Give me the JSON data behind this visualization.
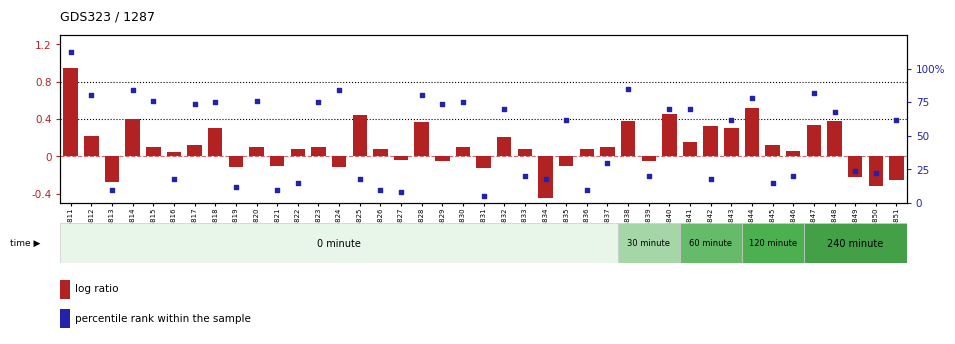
{
  "title": "GDS323 / 1287",
  "samples": [
    "GSM5811",
    "GSM5812",
    "GSM5813",
    "GSM5814",
    "GSM5815",
    "GSM5816",
    "GSM5817",
    "GSM5818",
    "GSM5819",
    "GSM5820",
    "GSM5821",
    "GSM5822",
    "GSM5823",
    "GSM5824",
    "GSM5825",
    "GSM5826",
    "GSM5827",
    "GSM5828",
    "GSM5829",
    "GSM5830",
    "GSM5831",
    "GSM5832",
    "GSM5833",
    "GSM5834",
    "GSM5835",
    "GSM5836",
    "GSM5837",
    "GSM5838",
    "GSM5839",
    "GSM5840",
    "GSM5841",
    "GSM5842",
    "GSM5843",
    "GSM5844",
    "GSM5845",
    "GSM5846",
    "GSM5847",
    "GSM5848",
    "GSM5849",
    "GSM5850",
    "GSM5851"
  ],
  "log_ratio": [
    0.95,
    0.22,
    -0.28,
    0.4,
    0.1,
    0.05,
    0.12,
    0.3,
    -0.12,
    0.1,
    -0.1,
    0.08,
    0.1,
    -0.12,
    0.44,
    0.08,
    -0.04,
    0.37,
    -0.05,
    0.1,
    -0.13,
    0.21,
    0.08,
    -0.45,
    -0.1,
    0.08,
    0.1,
    0.38,
    -0.05,
    0.45,
    0.15,
    0.32,
    0.3,
    0.52,
    0.12,
    0.06,
    0.33,
    0.38,
    -0.22,
    -0.32,
    -0.25
  ],
  "percentile": [
    112,
    80,
    10,
    84,
    76,
    18,
    74,
    75,
    12,
    76,
    10,
    15,
    75,
    84,
    18,
    10,
    8,
    80,
    74,
    75,
    5,
    70,
    20,
    18,
    62,
    10,
    30,
    85,
    20,
    70,
    70,
    18,
    62,
    78,
    15,
    20,
    82,
    68,
    24,
    22,
    62
  ],
  "time_groups": [
    {
      "label": "0 minute",
      "start": 0,
      "end": 27,
      "color": "#e8f5e9"
    },
    {
      "label": "30 minute",
      "start": 27,
      "end": 30,
      "color": "#a5d6a7"
    },
    {
      "label": "60 minute",
      "start": 30,
      "end": 33,
      "color": "#66bb6a"
    },
    {
      "label": "120 minute",
      "start": 33,
      "end": 36,
      "color": "#4caf50"
    },
    {
      "label": "240 minute",
      "start": 36,
      "end": 41,
      "color": "#43a047"
    }
  ],
  "bar_color": "#b22222",
  "dot_color": "#2222aa",
  "ylim_left": [
    -0.5,
    1.3
  ],
  "ylim_right": [
    0,
    125
  ],
  "yticks_left": [
    -0.4,
    0.0,
    0.4,
    0.8,
    1.2
  ],
  "yticks_right": [
    0,
    25,
    50,
    75,
    100
  ],
  "ytick_labels_left": [
    "-0.4",
    "0",
    "0.4",
    "0.8",
    "1.2"
  ],
  "ytick_labels_right": [
    "0",
    "25",
    "50",
    "75",
    "100%"
  ],
  "hlines": [
    0.4,
    0.8
  ],
  "zero_line_color": "#cc4444",
  "background_color": "#ffffff",
  "legend_items": [
    {
      "color": "#b22222",
      "label": "log ratio"
    },
    {
      "color": "#2222aa",
      "label": "percentile rank within the sample"
    }
  ]
}
